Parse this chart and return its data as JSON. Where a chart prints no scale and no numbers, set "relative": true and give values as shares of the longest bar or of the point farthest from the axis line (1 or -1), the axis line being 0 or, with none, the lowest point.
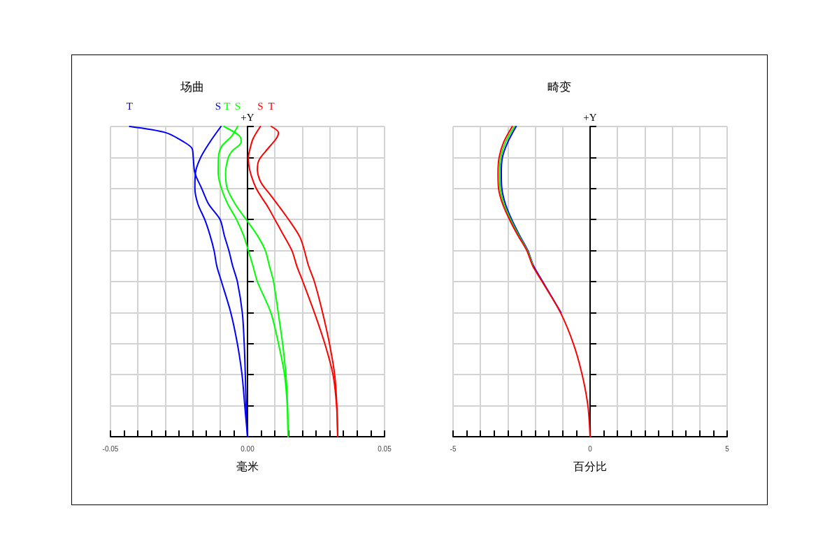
{
  "chart_data": [
    {
      "type": "line",
      "title": "场曲",
      "xlabel": "毫米",
      "ylabel": "+Y",
      "relative": true,
      "tick_labels": "x",
      "grid": true,
      "marker": "none",
      "line_style": "solid",
      "xlim": [
        -0.05,
        0.05
      ],
      "xticks": [
        -0.05,
        {
          "value": -0.04,
          "label": null
        },
        {
          "value": -0.03,
          "label": null
        },
        {
          "value": -0.02,
          "label": null
        },
        {
          "value": -0.01,
          "label": null
        },
        {
          "value": 0,
          "label": "0.00"
        },
        {
          "value": 0.01,
          "label": null
        },
        {
          "value": 0.02,
          "label": null
        },
        {
          "value": 0.03,
          "label": null
        },
        {
          "value": 0.04,
          "label": null
        },
        0.05
      ],
      "series": [
        {
          "name": "T",
          "color": "#0000ff",
          "x": [
            0,
            -0.0005,
            -0.0008,
            -0.0012,
            -0.0019,
            -0.0037,
            -0.0054,
            -0.0068,
            -0.0085,
            -0.01,
            -0.0142,
            -0.0167,
            -0.0192,
            -0.0198,
            -0.0203,
            -0.0232,
            -0.0298,
            -0.043
          ],
          "values": [
            0,
            0.1,
            0.2,
            0.3,
            0.4,
            0.5,
            0.55,
            0.6,
            0.65,
            0.7,
            0.75,
            0.8,
            0.85,
            0.9,
            0.93,
            0.95,
            0.98,
            1
          ]
        },
        {
          "name": "S",
          "color": "#0000ff",
          "x": [
            0,
            -0.001,
            -0.002,
            -0.0037,
            -0.0061,
            -0.0095,
            -0.0112,
            -0.0122,
            -0.0137,
            -0.0156,
            -0.0181,
            -0.0192,
            -0.019,
            -0.0171,
            -0.0137,
            -0.0097
          ],
          "values": [
            0,
            0.1,
            0.2,
            0.3,
            0.4,
            0.5,
            0.55,
            0.6,
            0.65,
            0.7,
            0.75,
            0.8,
            0.85,
            0.9,
            0.95,
            1
          ]
        },
        {
          "name": "T",
          "color": "#00ff00",
          "x": [
            0.0148,
            0.0146,
            0.014,
            0.0128,
            0.0112,
            0.0095,
            0.008,
            0.0065,
            0.0035,
            -0.0005,
            -0.0045,
            -0.0074,
            -0.008,
            -0.007,
            -0.0057,
            -0.0023,
            -0.003,
            -0.0086
          ],
          "values": [
            0,
            0.1,
            0.2,
            0.3,
            0.4,
            0.5,
            0.55,
            0.6,
            0.65,
            0.7,
            0.75,
            0.8,
            0.85,
            0.9,
            0.92,
            0.95,
            0.97,
            1
          ]
        },
        {
          "name": "S",
          "color": "#00ff00",
          "x": [
            0.0148,
            0.0145,
            0.0135,
            0.0113,
            0.0085,
            0.0036,
            0.002,
            0.0003,
            -0.0015,
            -0.004,
            -0.0072,
            -0.0095,
            -0.0107,
            -0.0106,
            -0.0095,
            -0.0057,
            -0.0036
          ],
          "values": [
            0,
            0.1,
            0.2,
            0.3,
            0.4,
            0.5,
            0.55,
            0.6,
            0.65,
            0.7,
            0.75,
            0.8,
            0.85,
            0.9,
            0.935,
            0.97,
            1
          ]
        },
        {
          "name": "S",
          "color": "#ff0000",
          "x": [
            0.0329,
            0.0325,
            0.0312,
            0.0282,
            0.0244,
            0.0202,
            0.018,
            0.0162,
            0.0125,
            0.01,
            0.0075,
            0.0032,
            0.0008,
            0.0003,
            0.0007,
            0.002,
            0.0047
          ],
          "values": [
            0,
            0.1,
            0.2,
            0.3,
            0.4,
            0.5,
            0.55,
            0.6,
            0.66,
            0.7,
            0.74,
            0.8,
            0.86,
            0.9,
            0.92,
            0.96,
            1
          ]
        },
        {
          "name": "T",
          "color": "#ff0000",
          "x": [
            0.0329,
            0.0326,
            0.0318,
            0.0299,
            0.0274,
            0.0244,
            0.0223,
            0.0193,
            0.0142,
            0.0083,
            0.0049,
            0.0036,
            0.0041,
            0.0066,
            0.0104,
            0.0113,
            0.0087
          ],
          "values": [
            0,
            0.1,
            0.2,
            0.3,
            0.4,
            0.5,
            0.55,
            0.64,
            0.71,
            0.78,
            0.82,
            0.86,
            0.89,
            0.92,
            0.96,
            0.98,
            1
          ]
        }
      ]
    },
    {
      "type": "line",
      "title": "畸变",
      "xlabel": "百分比",
      "ylabel": "+Y",
      "relative": true,
      "tick_labels": "x",
      "grid": true,
      "marker": "none",
      "line_style": "solid",
      "xlim": [
        -5,
        5
      ],
      "xticks": [
        -5,
        {
          "value": -4,
          "label": null
        },
        {
          "value": -3,
          "label": null
        },
        {
          "value": -2,
          "label": null
        },
        {
          "value": -1,
          "label": null
        },
        0,
        {
          "value": 1,
          "label": null
        },
        {
          "value": 2,
          "label": null
        },
        {
          "value": 3,
          "label": null
        },
        {
          "value": 4,
          "label": null
        },
        5
      ],
      "series": [
        {
          "color": "#0000ff",
          "x": [
            -1.06,
            -1.73,
            -2.06,
            -2.27,
            -2.58,
            -2.86,
            -3.09,
            -3.22,
            -3.24,
            -3.2,
            -3.0,
            -2.7
          ],
          "values": [
            0.4,
            0.5,
            0.55,
            0.6,
            0.65,
            0.7,
            0.75,
            0.8,
            0.85,
            0.9,
            0.95,
            1
          ]
        },
        {
          "color": "#00ff00",
          "x": [
            -2.08,
            -2.29,
            -2.61,
            -2.9,
            -3.14,
            -3.28,
            -3.3,
            -3.26,
            -3.08,
            -2.76
          ],
          "values": [
            0.55,
            0.6,
            0.65,
            0.7,
            0.75,
            0.8,
            0.85,
            0.9,
            0.95,
            1
          ]
        },
        {
          "color": "#ff0000",
          "x": [
            0,
            -0.08,
            -0.29,
            -0.61,
            -1.08,
            -1.75,
            -2.09,
            -2.31,
            -2.64,
            -2.94,
            -3.19,
            -3.34,
            -3.36,
            -3.32,
            -3.15,
            -2.84
          ],
          "values": [
            0,
            0.1,
            0.2,
            0.3,
            0.4,
            0.5,
            0.55,
            0.6,
            0.65,
            0.7,
            0.75,
            0.8,
            0.85,
            0.9,
            0.95,
            1
          ]
        }
      ]
    }
  ]
}
